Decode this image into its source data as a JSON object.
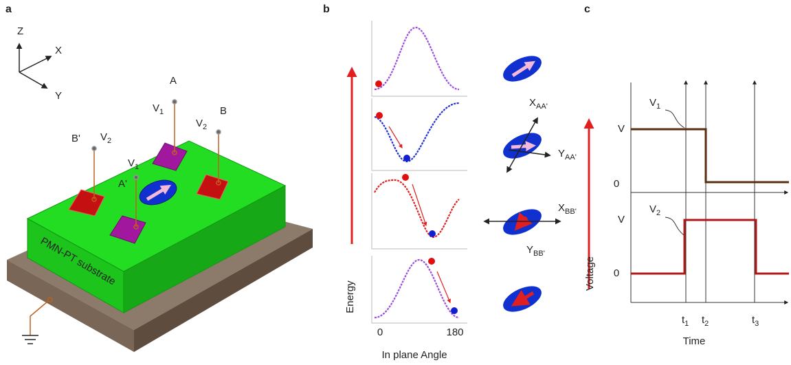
{
  "panel_a": {
    "label": "a",
    "axes": {
      "z": "Z",
      "x": "X",
      "y": "Y"
    },
    "terminals": [
      {
        "label": "A",
        "voltage": {
          "base": "V",
          "sub": "1"
        }
      },
      {
        "label": "B",
        "voltage": {
          "base": "V",
          "sub": "2"
        }
      },
      {
        "label": "B'",
        "voltage": {
          "base": "V",
          "sub": "2"
        }
      },
      {
        "label": "A'",
        "voltage": {
          "base": "V",
          "sub": "1"
        }
      }
    ],
    "substrate": "PMN-PT substrate"
  },
  "panel_b": {
    "label": "b",
    "y_label": "Energy",
    "x_ticks": [
      "0",
      "180"
    ],
    "x_label": "In plane Angle",
    "directions": [
      {
        "base": "X",
        "sub": "AA'"
      },
      {
        "base": "Y",
        "sub": "AA'"
      },
      {
        "base": "X",
        "sub": "BB'"
      },
      {
        "base": "Y",
        "sub": "BB'"
      }
    ]
  },
  "panel_c": {
    "label": "c",
    "y_label": "Voltage",
    "x_label": "Time",
    "signals": [
      {
        "name": {
          "base": "V",
          "sub": "1"
        },
        "levels": [
          "V",
          "0"
        ]
      },
      {
        "name": {
          "base": "V",
          "sub": "2"
        },
        "levels": [
          "V",
          "0"
        ]
      }
    ],
    "times": [
      {
        "base": "t",
        "sub": "1"
      },
      {
        "base": "t",
        "sub": "2"
      },
      {
        "base": "t",
        "sub": "3"
      }
    ]
  }
}
